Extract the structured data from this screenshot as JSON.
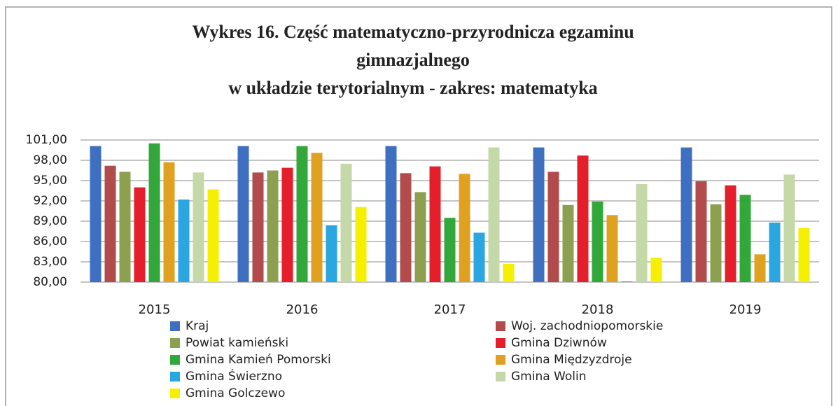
{
  "chart_data": {
    "type": "bar",
    "title": [
      "Wykres 16. Część matematyczno-przyrodnicza egzaminu",
      "gimnazjalnego",
      "w układzie terytorialnym - zakres: matematyka"
    ],
    "categories": [
      "2015",
      "2016",
      "2017",
      "2018",
      "2019"
    ],
    "series": [
      {
        "name": "Kraj",
        "color": "#3f6fc0",
        "values": [
          100.1,
          100.1,
          100.1,
          99.9,
          99.9
        ]
      },
      {
        "name": "Woj. zachodniopomorskie",
        "color": "#b24b4b",
        "values": [
          97.2,
          96.2,
          96.1,
          96.3,
          94.9
        ]
      },
      {
        "name": "Powiat kamieński",
        "color": "#8da050",
        "values": [
          96.3,
          96.5,
          93.3,
          91.4,
          91.5
        ]
      },
      {
        "name": "Gmina Dziwnów",
        "color": "#e41e2a",
        "values": [
          94.0,
          96.9,
          97.1,
          98.7,
          94.3
        ]
      },
      {
        "name": "Gmina Kamień Pomorski",
        "color": "#32a83a",
        "values": [
          100.5,
          100.1,
          89.5,
          91.9,
          92.9
        ]
      },
      {
        "name": "Gmina Międzyzdroje",
        "color": "#e0a020",
        "values": [
          97.7,
          99.1,
          96.0,
          89.9,
          84.1
        ]
      },
      {
        "name": "Gmina Świerzno",
        "color": "#2aa6e0",
        "values": [
          92.2,
          88.4,
          87.3,
          80.1,
          88.8
        ]
      },
      {
        "name": "Gmina Wolin",
        "color": "#c5d9a8",
        "values": [
          96.2,
          97.5,
          99.9,
          94.5,
          95.9
        ]
      },
      {
        "name": "Gmina Golczewo",
        "color": "#f5f000",
        "values": [
          93.7,
          91.1,
          82.7,
          83.6,
          88.0
        ]
      }
    ],
    "ylim": [
      80,
      101
    ],
    "yticks": [
      {
        "value": 80,
        "label": "80,00"
      },
      {
        "value": 83,
        "label": "83,00"
      },
      {
        "value": 86,
        "label": "86,00"
      },
      {
        "value": 89,
        "label": "89,00"
      },
      {
        "value": 92,
        "label": "92,00"
      },
      {
        "value": 95,
        "label": "95,00"
      },
      {
        "value": 98,
        "label": "98,00"
      },
      {
        "value": 101,
        "label": "101,00"
      }
    ],
    "grid": true
  }
}
